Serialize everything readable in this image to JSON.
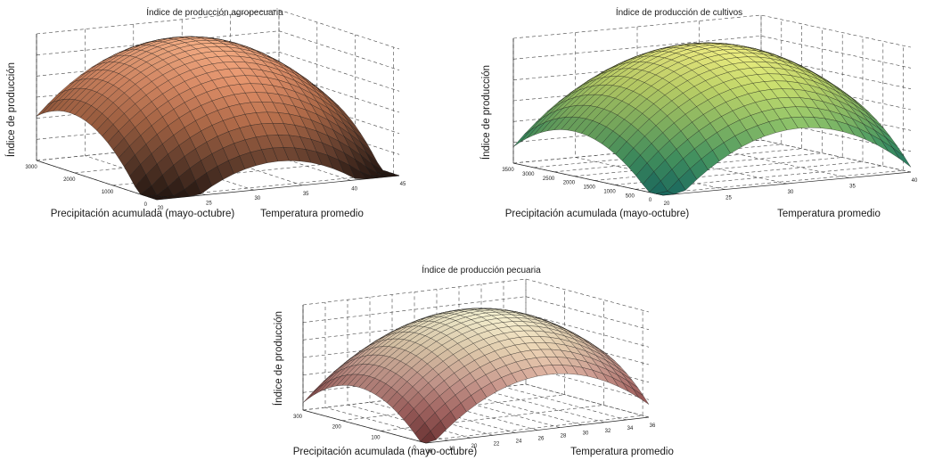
{
  "chart_data": [
    {
      "type": "surface",
      "title": "Índice de producción agropecuaria",
      "xlabel": "Precipitación acumulada (mayo-octubre)",
      "ylabel": "Temperatura promedio",
      "zlabel": "Índice de producción",
      "x_ticks": [
        "3000",
        "2000",
        "1000",
        "0"
      ],
      "x_range": [
        0,
        3500
      ],
      "y_ticks": [
        "20",
        "25",
        "30",
        "35",
        "40",
        "45"
      ],
      "y_range": [
        20,
        45
      ],
      "colormap": [
        "#2a1a14",
        "#6e4532",
        "#b66e4b",
        "#e3916a",
        "#f6ae85"
      ]
    },
    {
      "type": "surface",
      "title": "Índice de producción de cultivos",
      "xlabel": "Precipitación acumulada (mayo-octubre)",
      "ylabel": "Temperatura promedio",
      "zlabel": "Índice de producción",
      "x_ticks": [
        "3500",
        "3000",
        "2500",
        "2000",
        "1500",
        "1000",
        "500",
        "0"
      ],
      "x_range": [
        0,
        3800
      ],
      "y_ticks": [
        "20",
        "25",
        "30",
        "35",
        "40"
      ],
      "y_range": [
        20,
        42
      ],
      "colormap": [
        "#1f7a6e",
        "#4aa36b",
        "#8fc46a",
        "#c9df6e",
        "#f0ef82"
      ]
    },
    {
      "type": "surface",
      "title": "Índice de producción pecuaria",
      "xlabel": "Precipitación acumulada (mayo-octubre)",
      "ylabel": "Temperatura promedio",
      "zlabel": "Índice de producción",
      "x_ticks": [
        "300",
        "200",
        "100",
        "0"
      ],
      "x_range": [
        0,
        350
      ],
      "y_ticks": [
        "16",
        "18",
        "20",
        "22",
        "24",
        "26",
        "28",
        "30",
        "32",
        "34",
        "36"
      ],
      "y_range": [
        15,
        36
      ],
      "colormap": [
        "#7a3a3a",
        "#b56f6c",
        "#d9a69a",
        "#ecd5b5",
        "#f7f3d2"
      ]
    }
  ]
}
